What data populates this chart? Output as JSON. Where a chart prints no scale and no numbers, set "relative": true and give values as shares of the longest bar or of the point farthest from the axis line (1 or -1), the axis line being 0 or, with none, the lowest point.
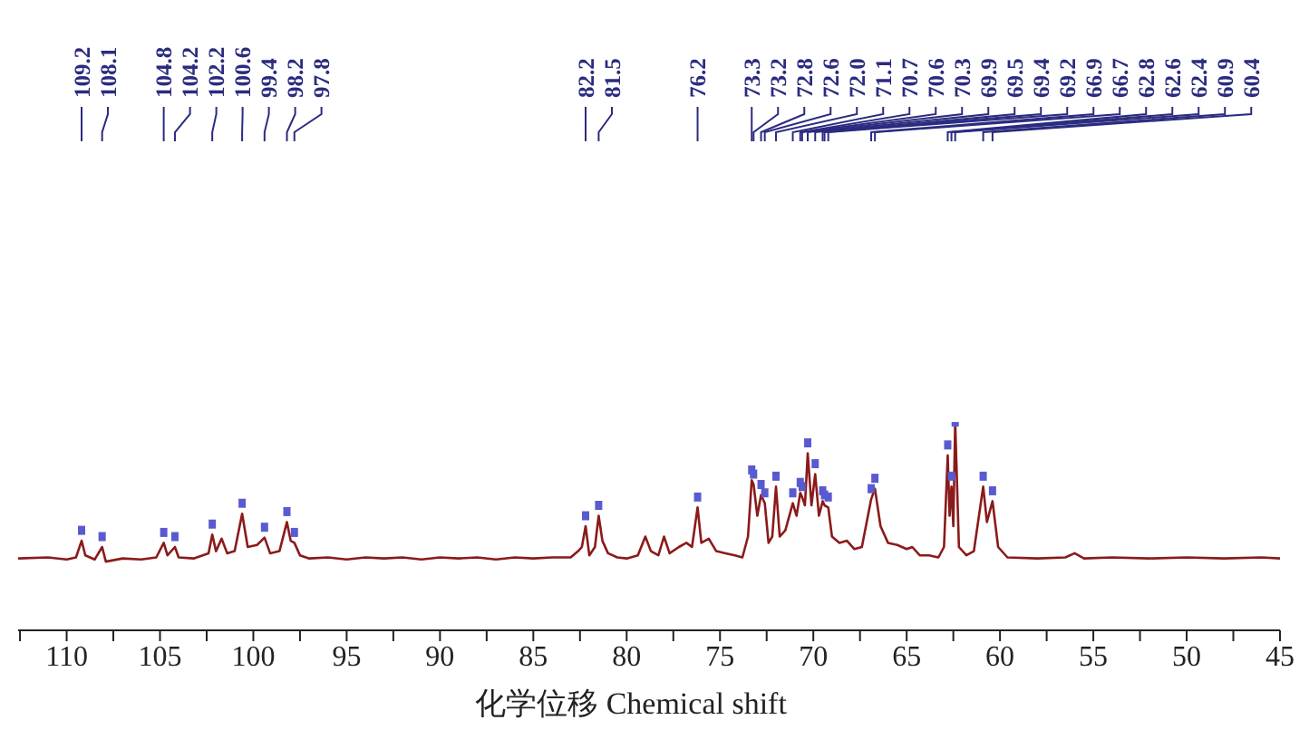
{
  "chart_data": {
    "type": "line",
    "xlabel": "化学位移 Chemical shift",
    "relative": true,
    "grid": false,
    "marker": "none",
    "line_style": "solid",
    "xlim": [
      112.6,
      45
    ],
    "xticks": [
      {
        "value": 112.5,
        "label": null
      },
      110,
      {
        "value": 107.5,
        "label": null
      },
      105,
      {
        "value": 102.5,
        "label": null
      },
      100,
      {
        "value": 97.5,
        "label": null
      },
      95,
      {
        "value": 92.5,
        "label": null
      },
      90,
      {
        "value": 87.5,
        "label": null
      },
      85,
      {
        "value": 82.5,
        "label": null
      },
      80,
      {
        "value": 77.5,
        "label": null
      },
      75,
      {
        "value": 72.5,
        "label": null
      },
      70,
      {
        "value": 67.5,
        "label": null
      },
      65,
      {
        "value": 62.5,
        "label": null
      },
      60,
      {
        "value": 57.5,
        "label": null
      },
      55,
      {
        "value": 52.5,
        "label": null
      },
      50,
      {
        "value": 47.5,
        "label": null
      },
      45
    ],
    "series": [
      {
        "color": "#8b1a1a",
        "x": [
          112.6,
          111,
          110,
          109.5,
          109.2,
          109.0,
          108.5,
          108.1,
          107.9,
          107,
          106,
          105.2,
          104.8,
          104.6,
          104.2,
          104.0,
          103.2,
          102.4,
          102.2,
          102.0,
          101.7,
          101.4,
          101.0,
          100.6,
          100.3,
          99.8,
          99.4,
          99.1,
          98.6,
          98.2,
          98.0,
          97.8,
          97.5,
          97,
          96,
          95,
          94,
          93,
          92,
          91,
          90,
          89,
          88,
          87,
          86,
          85,
          84,
          83,
          82.6,
          82.4,
          82.2,
          82.0,
          81.7,
          81.5,
          81.3,
          81.0,
          80.5,
          80,
          79.4,
          79.0,
          78.7,
          78.3,
          78.0,
          77.7,
          77.2,
          76.8,
          76.5,
          76.2,
          76.0,
          75.6,
          75.2,
          74.7,
          74.2,
          73.8,
          73.5,
          73.3,
          73.2,
          73.0,
          72.8,
          72.6,
          72.4,
          72.2,
          72.0,
          71.8,
          71.5,
          71.1,
          70.9,
          70.7,
          70.6,
          70.45,
          70.3,
          70.1,
          69.9,
          69.7,
          69.5,
          69.4,
          69.2,
          69.0,
          68.6,
          68.2,
          67.8,
          67.4,
          66.9,
          66.7,
          66.4,
          66.0,
          65.5,
          65.0,
          64.7,
          64.3,
          63.8,
          63.3,
          63.0,
          62.8,
          62.7,
          62.6,
          62.5,
          62.4,
          62.2,
          61.8,
          61.4,
          60.9,
          60.7,
          60.4,
          60.1,
          59.6,
          58,
          56.5,
          56.0,
          55.5,
          54,
          52,
          50,
          48,
          46,
          45
        ],
        "values": [
          0.345,
          0.35,
          0.34,
          0.35,
          0.43,
          0.36,
          0.34,
          0.4,
          0.33,
          0.345,
          0.34,
          0.35,
          0.42,
          0.36,
          0.4,
          0.35,
          0.345,
          0.37,
          0.46,
          0.38,
          0.44,
          0.37,
          0.38,
          0.56,
          0.4,
          0.41,
          0.445,
          0.37,
          0.38,
          0.52,
          0.43,
          0.42,
          0.36,
          0.345,
          0.35,
          0.34,
          0.35,
          0.345,
          0.35,
          0.34,
          0.35,
          0.345,
          0.35,
          0.34,
          0.35,
          0.345,
          0.35,
          0.35,
          0.38,
          0.4,
          0.5,
          0.36,
          0.4,
          0.55,
          0.43,
          0.37,
          0.35,
          0.345,
          0.36,
          0.45,
          0.38,
          0.36,
          0.45,
          0.37,
          0.4,
          0.42,
          0.4,
          0.59,
          0.42,
          0.44,
          0.38,
          0.37,
          0.36,
          0.35,
          0.45,
          0.72,
          0.7,
          0.55,
          0.65,
          0.61,
          0.42,
          0.45,
          0.69,
          0.45,
          0.48,
          0.61,
          0.55,
          0.66,
          0.64,
          0.6,
          0.85,
          0.6,
          0.75,
          0.55,
          0.62,
          0.6,
          0.59,
          0.45,
          0.42,
          0.43,
          0.39,
          0.4,
          0.63,
          0.68,
          0.5,
          0.42,
          0.41,
          0.39,
          0.4,
          0.36,
          0.36,
          0.35,
          0.4,
          0.84,
          0.55,
          0.69,
          0.5,
          1.0,
          0.4,
          0.36,
          0.38,
          0.69,
          0.52,
          0.62,
          0.4,
          0.35,
          0.345,
          0.35,
          0.37,
          0.345,
          0.35,
          0.345,
          0.35,
          0.345,
          0.35,
          0.345
        ]
      },
      {
        "type": "scatter",
        "color": "#5a5ad0",
        "marker": "square",
        "x": [
          109.2,
          108.1,
          104.8,
          104.2,
          102.2,
          100.6,
          99.4,
          98.2,
          97.8,
          82.2,
          81.5,
          76.2,
          73.3,
          73.2,
          72.8,
          72.6,
          72.0,
          71.1,
          70.7,
          70.6,
          70.3,
          69.9,
          69.5,
          69.4,
          69.2,
          66.9,
          66.7,
          62.8,
          62.6,
          62.4,
          60.9,
          60.4
        ],
        "values": [
          0.48,
          0.45,
          0.47,
          0.45,
          0.51,
          0.61,
          0.495,
          0.57,
          0.47,
          0.55,
          0.6,
          0.64,
          0.77,
          0.75,
          0.7,
          0.66,
          0.74,
          0.66,
          0.71,
          0.69,
          0.9,
          0.8,
          0.67,
          0.65,
          0.64,
          0.68,
          0.73,
          0.89,
          0.74,
          1.0,
          0.74,
          0.67
        ]
      }
    ],
    "annotations": [
      "109.2",
      "108.1",
      "104.8",
      "104.2",
      "102.2",
      "100.6",
      "99.4",
      "98.2",
      "97.8",
      "82.2",
      "81.5",
      "76.2",
      "73.3",
      "73.2",
      "72.8",
      "72.6",
      "72.0",
      "71.1",
      "70.7",
      "70.6",
      "70.3",
      "69.9",
      "69.5",
      "69.4",
      "69.2",
      "66.9",
      "66.7",
      "62.8",
      "62.6",
      "62.4",
      "60.9",
      "60.4"
    ]
  }
}
